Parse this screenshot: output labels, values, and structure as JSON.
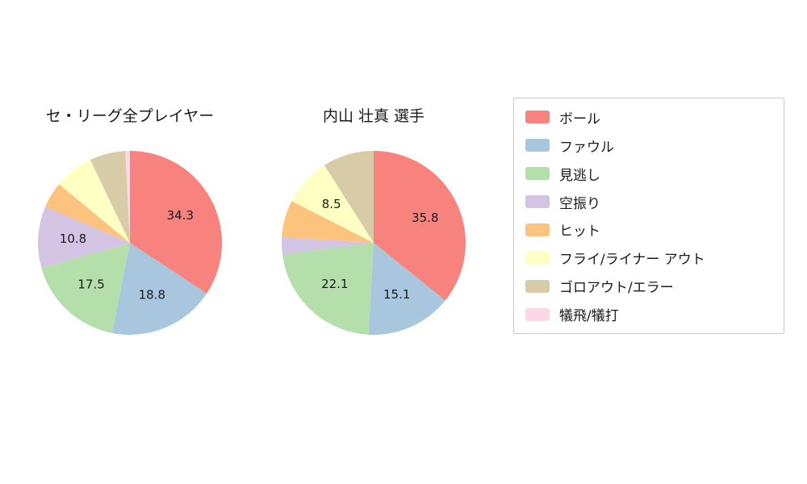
{
  "chart_data": [
    {
      "type": "pie",
      "title": "セ・リーグ全プレイヤー",
      "categories": [
        "ボール",
        "ファウル",
        "見逃し",
        "空振り",
        "ヒット",
        "フライ/ライナー アウト",
        "ゴロアウト/エラー",
        "犠飛/犠打"
      ],
      "values": [
        34.3,
        18.8,
        17.5,
        10.8,
        4.6,
        6.9,
        6.3,
        0.8
      ],
      "displayed_labels": [
        "34.3",
        "18.8",
        "17.5",
        "10.8",
        "",
        "",
        "",
        ""
      ],
      "start": "top",
      "direction": "clockwise"
    },
    {
      "type": "pie",
      "title": "内山 壮真  選手",
      "categories": [
        "ボール",
        "ファウル",
        "見逃し",
        "空振り",
        "ヒット",
        "フライ/ライナー アウト",
        "ゴロアウト/エラー",
        "犠飛/犠打"
      ],
      "values": [
        35.8,
        15.1,
        22.1,
        3.0,
        6.5,
        8.5,
        9.0,
        0
      ],
      "displayed_labels": [
        "35.8",
        "15.1",
        "22.1",
        "",
        "",
        "8.5",
        "",
        ""
      ],
      "start": "top",
      "direction": "clockwise"
    }
  ],
  "legend": {
    "items": [
      {
        "label": "ボール",
        "color": "#F8827D"
      },
      {
        "label": "ファウル",
        "color": "#A8C6DE"
      },
      {
        "label": "見逃し",
        "color": "#B4DFAB"
      },
      {
        "label": "空振り",
        "color": "#D2C4E2"
      },
      {
        "label": "ヒット",
        "color": "#FBC37E"
      },
      {
        "label": "フライ/ライナー アウト",
        "color": "#FFFFC4"
      },
      {
        "label": "ゴロアウト/エラー",
        "color": "#D7CCA7"
      },
      {
        "label": "犠飛/犠打",
        "color": "#FBD7E8"
      }
    ]
  }
}
